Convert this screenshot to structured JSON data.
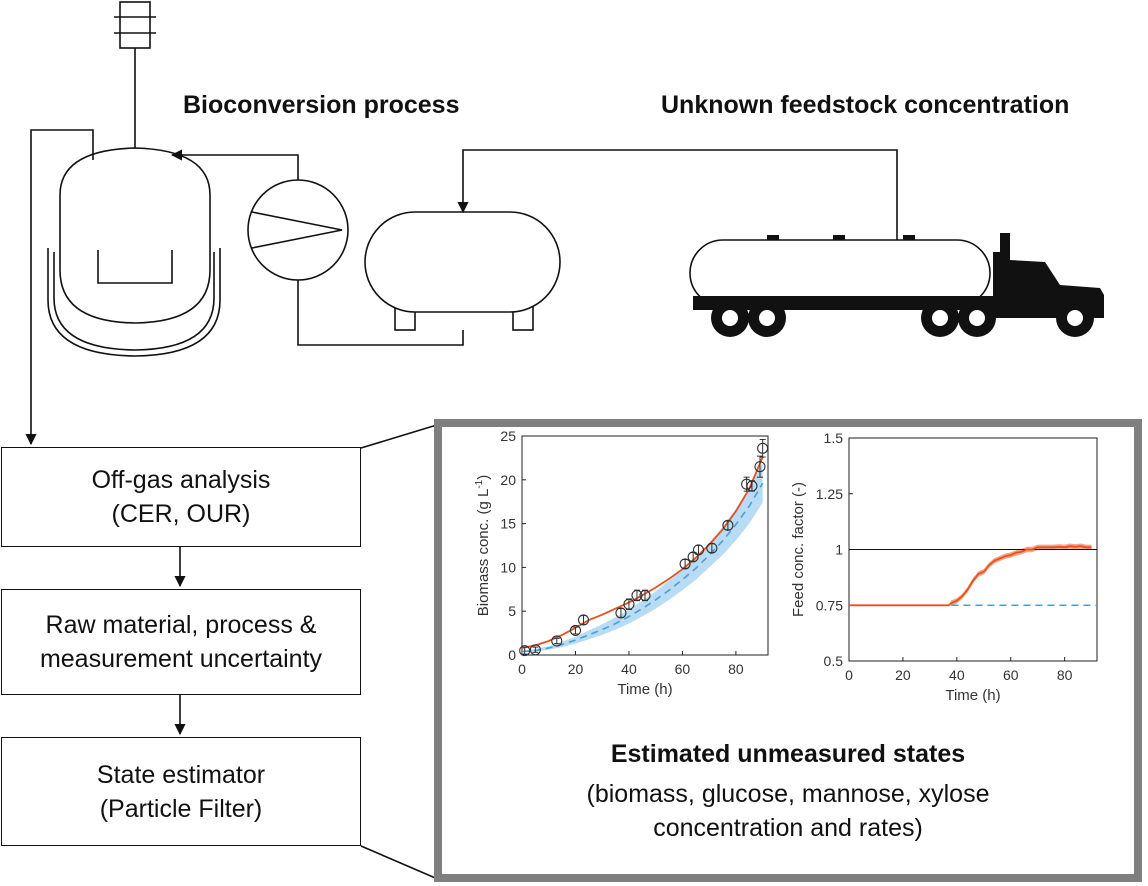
{
  "headings": {
    "process": "Bioconversion process",
    "feedstock": "Unknown feedstock concentration"
  },
  "flow_boxes": [
    {
      "line1": "Off-gas analysis",
      "line2": "(CER, OUR)"
    },
    {
      "line1": "Raw material, process &",
      "line2": "measurement uncertainty"
    },
    {
      "line1": "State estimator",
      "line2": "(Particle Filter)"
    }
  ],
  "estimated": {
    "title": "Estimated unmeasured states",
    "line1": "(biomass, glucose, mannose, xylose",
    "line2": "concentration and rates)"
  },
  "chart_data": [
    {
      "type": "scatter",
      "xlabel": "Time (h)",
      "ylabel": "Biomass conc. (g L",
      "ylabel_sup": "-1",
      "ylabel_close": ")",
      "xlim": [
        0,
        92
      ],
      "ylim": [
        0,
        25
      ],
      "xticks": [
        "0",
        "20",
        "40",
        "60",
        "80"
      ],
      "xtick_values": [
        0,
        20,
        40,
        60,
        80
      ],
      "yticks": [
        "0",
        "5",
        "10",
        "15",
        "20",
        "25"
      ],
      "ytick_values": [
        0,
        5,
        10,
        15,
        20,
        25
      ],
      "colors": {
        "estimate": "#e8511e",
        "open_loop": "#4a9fd8",
        "band": "#b7dcf3",
        "marker": "#333333"
      },
      "measurements": [
        {
          "x": 1,
          "y": 0.5,
          "err": 0.4
        },
        {
          "x": 5,
          "y": 0.6,
          "err": 0.3
        },
        {
          "x": 13,
          "y": 1.6,
          "err": 0.3
        },
        {
          "x": 20,
          "y": 2.8,
          "err": 0.4
        },
        {
          "x": 23,
          "y": 4.0,
          "err": 0.5
        },
        {
          "x": 37,
          "y": 4.8,
          "err": 0.5
        },
        {
          "x": 40,
          "y": 5.8,
          "err": 0.6
        },
        {
          "x": 43,
          "y": 6.8,
          "err": 0.6
        },
        {
          "x": 46,
          "y": 6.8,
          "err": 0.6
        },
        {
          "x": 61,
          "y": 10.4,
          "err": 0.5
        },
        {
          "x": 64,
          "y": 11.2,
          "err": 0.5
        },
        {
          "x": 66,
          "y": 12.0,
          "err": 0.5
        },
        {
          "x": 71,
          "y": 12.2,
          "err": 0.5
        },
        {
          "x": 77,
          "y": 14.8,
          "err": 0.5
        },
        {
          "x": 84,
          "y": 19.5,
          "err": 0.8
        },
        {
          "x": 86,
          "y": 19.3,
          "err": 0.6
        },
        {
          "x": 89,
          "y": 21.5,
          "err": 1.2
        },
        {
          "x": 90,
          "y": 23.6,
          "err": 1.0
        }
      ],
      "estimate_line": {
        "x": [
          0,
          5,
          10,
          15,
          20,
          25,
          30,
          35,
          40,
          45,
          50,
          55,
          60,
          65,
          70,
          75,
          80,
          85,
          90
        ],
        "y": [
          0.8,
          1.1,
          1.6,
          2.3,
          3.1,
          4.0,
          4.6,
          5.3,
          6.0,
          6.8,
          7.7,
          8.7,
          9.8,
          11.1,
          12.6,
          14.3,
          16.4,
          19.0,
          22.6
        ]
      },
      "open_loop_line": {
        "x": [
          0,
          5,
          10,
          15,
          20,
          25,
          30,
          35,
          40,
          45,
          50,
          55,
          60,
          65,
          70,
          75,
          80,
          85,
          90
        ],
        "y": [
          0.4,
          0.5,
          0.8,
          1.2,
          1.7,
          2.3,
          2.9,
          3.6,
          4.4,
          5.3,
          6.3,
          7.4,
          8.6,
          9.9,
          11.4,
          13.0,
          14.9,
          17.0,
          19.6
        ],
        "band_low": [
          0.3,
          0.4,
          0.6,
          0.9,
          1.3,
          1.8,
          2.3,
          2.9,
          3.6,
          4.4,
          5.3,
          6.3,
          7.4,
          8.6,
          10.0,
          11.4,
          13.1,
          15.0,
          17.4
        ],
        "band_high": [
          0.5,
          0.7,
          1.0,
          1.5,
          2.1,
          2.8,
          3.5,
          4.3,
          5.2,
          6.2,
          7.3,
          8.5,
          9.8,
          11.2,
          12.8,
          14.6,
          16.7,
          19.1,
          22.0
        ]
      }
    },
    {
      "type": "line",
      "xlabel": "Time (h)",
      "ylabel": "Feed conc. factor (-)",
      "xlim": [
        0,
        92
      ],
      "ylim": [
        0.5,
        1.5
      ],
      "xticks": [
        "0",
        "20",
        "40",
        "60",
        "80"
      ],
      "xtick_values": [
        0,
        20,
        40,
        60,
        80
      ],
      "yticks": [
        "0.5",
        "0.75",
        "1",
        "1.25",
        "1.5"
      ],
      "ytick_values": [
        0.5,
        0.75,
        1,
        1.25,
        1.5
      ],
      "colors": {
        "estimate": "#e8511e",
        "band": "#f4a58a",
        "reference": "#111111",
        "initial": "#4a9fd8"
      },
      "reference_line": {
        "y": 1
      },
      "initial_line": {
        "x": [
          38,
          92
        ],
        "y": 0.75
      },
      "estimate_line": {
        "x": [
          0,
          37,
          38,
          40,
          42,
          44,
          46,
          48,
          50,
          52,
          54,
          56,
          58,
          60,
          62,
          64,
          66,
          68,
          70,
          72,
          74,
          76,
          78,
          80,
          82,
          84,
          86,
          88,
          90
        ],
        "y": [
          0.75,
          0.75,
          0.76,
          0.77,
          0.79,
          0.82,
          0.86,
          0.89,
          0.9,
          0.93,
          0.95,
          0.96,
          0.97,
          0.975,
          0.985,
          0.99,
          1.0,
          1.0,
          1.01,
          1.01,
          1.01,
          1.01,
          1.012,
          1.01,
          1.015,
          1.012,
          1.015,
          1.01,
          1.01
        ]
      }
    }
  ]
}
